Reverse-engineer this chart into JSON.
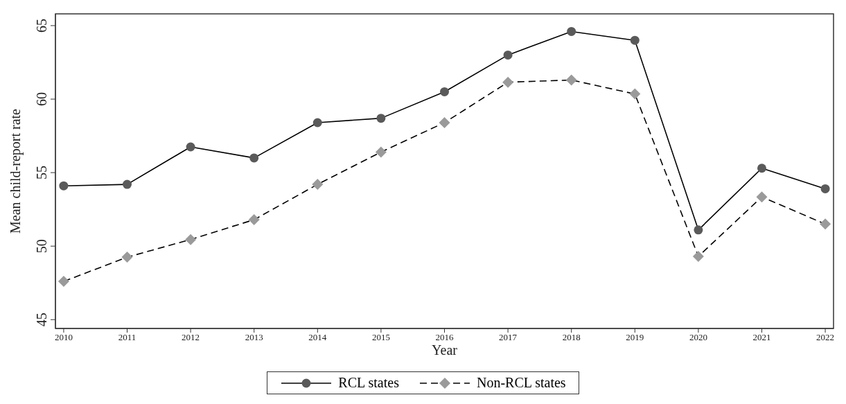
{
  "chart_data": {
    "type": "line",
    "xlabel": "Year",
    "ylabel": "Mean child-report rate",
    "categories": [
      "2010",
      "2011",
      "2012",
      "2013",
      "2014",
      "2015",
      "2016",
      "2017",
      "2018",
      "2019",
      "2020",
      "2021",
      "2022"
    ],
    "series": [
      {
        "name": "RCL states",
        "color": "#5a5a5a",
        "marker": "circle",
        "line_style": "solid",
        "values": [
          54.1,
          54.2,
          56.75,
          56.0,
          58.4,
          58.7,
          60.5,
          63.0,
          64.6,
          64.0,
          51.1,
          55.3,
          53.9
        ]
      },
      {
        "name": "Non-RCL states",
        "color": "#9a9a9a",
        "marker": "diamond",
        "line_style": "dashed",
        "values": [
          47.6,
          49.25,
          50.45,
          51.8,
          54.2,
          56.4,
          58.4,
          61.15,
          61.3,
          60.35,
          49.3,
          53.35,
          51.5
        ]
      }
    ],
    "ylim": [
      44.4,
      65.8
    ],
    "yticks": [
      45,
      50,
      55,
      60,
      65
    ],
    "grid": false,
    "legend": "bottom"
  }
}
